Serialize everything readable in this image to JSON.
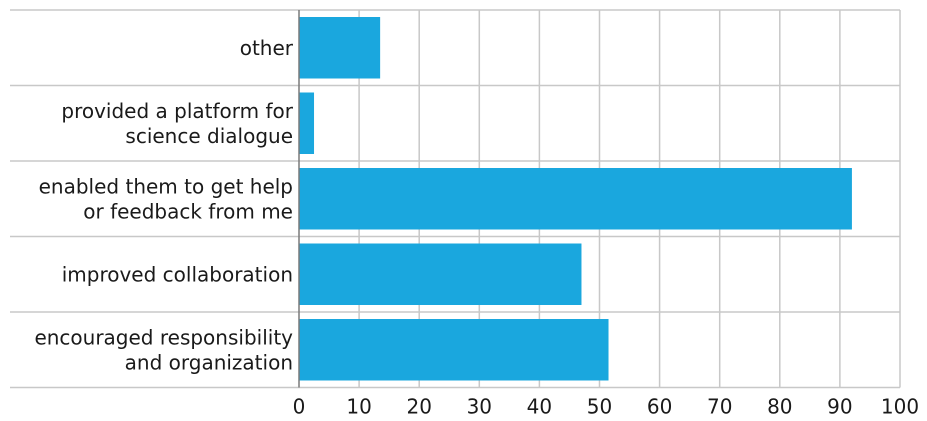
{
  "chart_data": {
    "type": "bar",
    "orientation": "horizontal",
    "categories": [
      "other",
      "provided a platform for science dialogue",
      "enabled them to get help or feedback from me",
      "improved collaboration",
      "encouraged responsibility and organization"
    ],
    "category_label_lines": [
      [
        "other"
      ],
      [
        "provided a platform for",
        "science dialogue"
      ],
      [
        "enabled them to get help",
        "or feedback from me"
      ],
      [
        "improved collaboration"
      ],
      [
        "encouraged responsibility",
        "and organization"
      ]
    ],
    "values": [
      13.5,
      2.5,
      92,
      47,
      51.5
    ],
    "title": "",
    "xlabel": "",
    "ylabel": "",
    "xlim": [
      0,
      100
    ],
    "xticks": [
      0,
      10,
      20,
      30,
      40,
      50,
      60,
      70,
      80,
      90,
      100
    ],
    "grid": true,
    "legend": "none",
    "bar_color": "#1aa7de"
  }
}
